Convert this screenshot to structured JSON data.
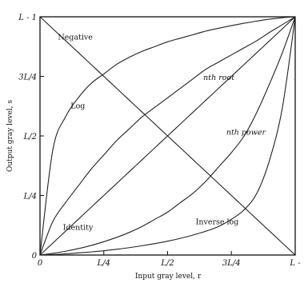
{
  "chart_data": {
    "type": "line",
    "title": "",
    "xlabel": "Input gray level, r",
    "ylabel": "Output gray level, s",
    "xlim": [
      0,
      1
    ],
    "ylim": [
      0,
      1
    ],
    "grid": false,
    "x_ticks": [
      {
        "value": 0,
        "label": "0"
      },
      {
        "value": 0.25,
        "label": "L/4"
      },
      {
        "value": 0.5,
        "label": "L/2"
      },
      {
        "value": 0.75,
        "label": "3L/4"
      },
      {
        "value": 1,
        "label": "L -"
      }
    ],
    "y_ticks": [
      {
        "value": 0,
        "label": "0"
      },
      {
        "value": 0.25,
        "label": "L/4"
      },
      {
        "value": 0.5,
        "label": "L/2"
      },
      {
        "value": 0.75,
        "label": "3L/4"
      },
      {
        "value": 1,
        "label": "L - 1"
      }
    ],
    "x": [
      0,
      0.05,
      0.1,
      0.15,
      0.2,
      0.25,
      0.3,
      0.35,
      0.4,
      0.45,
      0.5,
      0.55,
      0.6,
      0.65,
      0.7,
      0.75,
      0.8,
      0.85,
      0.9,
      0.95,
      1
    ],
    "series": [
      {
        "name": "Negative",
        "values": [
          1,
          0.95,
          0.9,
          0.85,
          0.8,
          0.75,
          0.7,
          0.65,
          0.6,
          0.55,
          0.5,
          0.45,
          0.4,
          0.35,
          0.3,
          0.25,
          0.2,
          0.15,
          0.1,
          0.05,
          0
        ]
      },
      {
        "name": "Identity",
        "values": [
          0,
          0.05,
          0.1,
          0.15,
          0.2,
          0.25,
          0.3,
          0.35,
          0.4,
          0.45,
          0.5,
          0.55,
          0.6,
          0.65,
          0.7,
          0.75,
          0.8,
          0.85,
          0.9,
          0.95,
          1
        ]
      },
      {
        "name": "Log",
        "values": [
          0,
          0.44,
          0.58,
          0.66,
          0.72,
          0.76,
          0.8,
          0.83,
          0.855,
          0.875,
          0.895,
          0.91,
          0.925,
          0.94,
          0.952,
          0.963,
          0.973,
          0.982,
          0.99,
          0.996,
          1
        ]
      },
      {
        "name": "nth root",
        "values": [
          0,
          0.14,
          0.22,
          0.29,
          0.36,
          0.42,
          0.48,
          0.53,
          0.58,
          0.62,
          0.66,
          0.7,
          0.74,
          0.78,
          0.81,
          0.84,
          0.87,
          0.9,
          0.935,
          0.967,
          1
        ]
      },
      {
        "name": "nth power",
        "values": [
          0,
          0.007,
          0.016,
          0.027,
          0.04,
          0.056,
          0.074,
          0.095,
          0.12,
          0.15,
          0.18,
          0.22,
          0.26,
          0.31,
          0.37,
          0.43,
          0.5,
          0.6,
          0.72,
          0.85,
          1
        ]
      },
      {
        "name": "Inverse log",
        "values": [
          0,
          0.002,
          0.005,
          0.009,
          0.013,
          0.018,
          0.024,
          0.031,
          0.039,
          0.048,
          0.058,
          0.07,
          0.084,
          0.1,
          0.12,
          0.15,
          0.19,
          0.26,
          0.4,
          0.62,
          1
        ]
      }
    ],
    "labels": [
      {
        "text": "Negative",
        "x": 0.07,
        "y": 0.905,
        "italic": false
      },
      {
        "text": "Log",
        "x": 0.12,
        "y": 0.615,
        "italic": false
      },
      {
        "text": "nth root",
        "x": 0.64,
        "y": 0.735,
        "italic": true
      },
      {
        "text": "nth power",
        "x": 0.73,
        "y": 0.505,
        "italic": true
      },
      {
        "text": "Identity",
        "x": 0.09,
        "y": 0.105,
        "italic": false
      },
      {
        "text": "Inverse log",
        "x": 0.61,
        "y": 0.13,
        "italic": false
      }
    ]
  }
}
